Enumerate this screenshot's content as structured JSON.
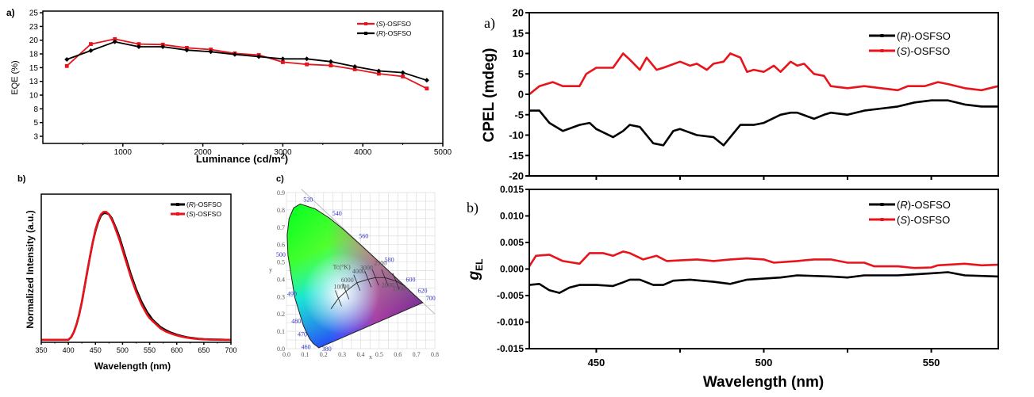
{
  "colors": {
    "S": "#e8131b",
    "R": "#000000"
  },
  "chart_data": [
    {
      "id": "eqe",
      "panel_label": "a)",
      "type": "line",
      "xlabel": "Luminance (cd/m",
      "xlabel_sup": "2",
      "xlabel_end": ")",
      "ylabel": "EQE (%)",
      "xlim": [
        0,
        5000
      ],
      "ylim": [
        1.2,
        25.3
      ],
      "xticks": [
        1000,
        2000,
        3000,
        4000,
        5000
      ],
      "xtick_labels": [
        "1000",
        "2000",
        "3000",
        "4000",
        "5000"
      ],
      "yticks": [
        2.5,
        5,
        7.5,
        10,
        12.5,
        15,
        17.5,
        20,
        22.5,
        25
      ],
      "ytick_labels": [
        "3",
        "5",
        "8",
        "10",
        "13",
        "15",
        "18",
        "20",
        "23",
        "25"
      ],
      "legend": "top-right",
      "x": [
        300,
        600,
        900,
        1200,
        1500,
        1800,
        2100,
        2400,
        2700,
        3000,
        3300,
        3600,
        3900,
        4200,
        4500,
        4800
      ],
      "series": [
        {
          "name_pre": "(",
          "name_it": "S",
          "name_post": ")-OSFSO",
          "color": "S",
          "marker": "square",
          "values": [
            15.3,
            19.3,
            20.2,
            19.3,
            19.2,
            18.6,
            18.3,
            17.6,
            17.3,
            16.0,
            15.6,
            15.4,
            14.7,
            13.9,
            13.4,
            11.2
          ]
        },
        {
          "name_pre": "(",
          "name_it": "R",
          "name_post": ")-OSFSO",
          "color": "R",
          "marker": "diamond",
          "values": [
            16.5,
            18.1,
            19.7,
            18.8,
            18.8,
            18.2,
            17.9,
            17.4,
            17.0,
            16.6,
            16.6,
            16.1,
            15.2,
            14.4,
            14.1,
            12.7
          ]
        }
      ]
    },
    {
      "id": "pl",
      "panel_label": "b)",
      "type": "line",
      "xlabel": "Wavelength (nm)",
      "ylabel": "Normalized Intensity (a.u.)",
      "xlim": [
        350,
        700
      ],
      "ylim": [
        -0.02,
        1.15
      ],
      "xticks": [
        350,
        400,
        450,
        500,
        550,
        600,
        650,
        700
      ],
      "xtick_labels": [
        "350",
        "400",
        "450",
        "500",
        "550",
        "600",
        "650",
        "700"
      ],
      "legend": "top-right",
      "x": [
        350,
        360,
        370,
        380,
        390,
        400,
        405,
        410,
        415,
        420,
        425,
        430,
        435,
        440,
        445,
        450,
        455,
        460,
        465,
        470,
        475,
        480,
        485,
        490,
        495,
        500,
        505,
        510,
        515,
        520,
        525,
        530,
        535,
        540,
        545,
        550,
        555,
        560,
        570,
        580,
        590,
        600,
        610,
        620,
        630,
        640,
        650,
        660,
        670,
        680,
        690,
        700
      ],
      "series": [
        {
          "name_pre": "(",
          "name_it": "R",
          "name_post": ")-OSFSO",
          "color": "R",
          "values": [
            0,
            0,
            0,
            0,
            0,
            0,
            0.02,
            0.06,
            0.12,
            0.2,
            0.3,
            0.42,
            0.54,
            0.66,
            0.77,
            0.86,
            0.93,
            0.98,
            1.0,
            1.0,
            0.99,
            0.96,
            0.91,
            0.86,
            0.8,
            0.73,
            0.66,
            0.59,
            0.52,
            0.46,
            0.4,
            0.35,
            0.3,
            0.26,
            0.22,
            0.19,
            0.16,
            0.14,
            0.1,
            0.075,
            0.055,
            0.04,
            0.028,
            0.019,
            0.013,
            0.008,
            0.005,
            0.003,
            0.002,
            0.001,
            0,
            0
          ]
        },
        {
          "name_pre": "(",
          "name_it": "S",
          "name_post": ")-OSFSO",
          "color": "S",
          "values": [
            0,
            0,
            0,
            0,
            0,
            0,
            0.02,
            0.06,
            0.12,
            0.2,
            0.3,
            0.42,
            0.54,
            0.66,
            0.77,
            0.87,
            0.94,
            0.99,
            1.01,
            1.01,
            0.99,
            0.95,
            0.9,
            0.84,
            0.78,
            0.71,
            0.64,
            0.57,
            0.5,
            0.44,
            0.38,
            0.33,
            0.28,
            0.24,
            0.2,
            0.17,
            0.15,
            0.13,
            0.09,
            0.065,
            0.048,
            0.035,
            0.024,
            0.016,
            0.01,
            0.006,
            0.004,
            0.002,
            0.001,
            0,
            0,
            0
          ]
        }
      ]
    },
    {
      "id": "cie",
      "panel_label": "c)",
      "type": "scatter",
      "xlabel": "x",
      "ylabel": "y",
      "xlim": [
        0,
        0.8
      ],
      "ylim": [
        0,
        0.9
      ],
      "xticks": [
        0,
        0.1,
        0.2,
        0.3,
        0.4,
        0.5,
        0.6,
        0.7,
        0.8
      ],
      "xtick_labels": [
        "0.0",
        "0.1",
        "0.2",
        "0.3",
        "0.4",
        "0.5",
        "0.6",
        "0.7",
        "0.8"
      ],
      "yticks": [
        0,
        0.1,
        0.2,
        0.3,
        0.4,
        0.5,
        0.6,
        0.7,
        0.8,
        0.9
      ],
      "ytick_labels": [
        "0.0",
        "0.1",
        "0.2",
        "0.3",
        "0.4",
        "0.5",
        "0.6",
        "0.7",
        "0.8",
        "0.9"
      ],
      "grid": true,
      "spectral_locus": [
        [
          0.1741,
          0.005
        ],
        [
          0.144,
          0.03
        ],
        [
          0.124,
          0.058
        ],
        [
          0.091,
          0.133
        ],
        [
          0.045,
          0.295
        ],
        [
          0.008,
          0.538
        ],
        [
          0.004,
          0.655
        ],
        [
          0.014,
          0.75
        ],
        [
          0.039,
          0.812
        ],
        [
          0.074,
          0.834
        ],
        [
          0.155,
          0.806
        ],
        [
          0.23,
          0.754
        ],
        [
          0.302,
          0.692
        ],
        [
          0.373,
          0.624
        ],
        [
          0.444,
          0.555
        ],
        [
          0.512,
          0.487
        ],
        [
          0.575,
          0.424
        ],
        [
          0.627,
          0.372
        ],
        [
          0.691,
          0.308
        ],
        [
          0.735,
          0.265
        ]
      ],
      "wavelength_labels": [
        {
          "text": "520",
          "x": 0.074,
          "y": 0.834
        },
        {
          "text": "540",
          "x": 0.23,
          "y": 0.754
        },
        {
          "text": "560",
          "x": 0.373,
          "y": 0.624
        },
        {
          "text": "580",
          "x": 0.512,
          "y": 0.487
        },
        {
          "text": "600",
          "x": 0.627,
          "y": 0.372
        },
        {
          "text": "620",
          "x": 0.691,
          "y": 0.308
        },
        {
          "text": "700",
          "x": 0.735,
          "y": 0.265
        },
        {
          "text": "500",
          "x": 0.008,
          "y": 0.538
        },
        {
          "text": "490",
          "x": 0.045,
          "y": 0.295
        },
        {
          "text": "480",
          "x": 0.091,
          "y": 0.133
        },
        {
          "text": "470",
          "x": 0.124,
          "y": 0.058
        },
        {
          "text": "460",
          "x": 0.144,
          "y": 0.03
        },
        {
          "text": "380",
          "x": 0.1741,
          "y": 0.005
        }
      ],
      "planckian_title": "Tc(°K)",
      "planckian_locus": [
        [
          0.24,
          0.23
        ],
        [
          0.28,
          0.29
        ],
        [
          0.32,
          0.33
        ],
        [
          0.38,
          0.38
        ],
        [
          0.44,
          0.4
        ],
        [
          0.48,
          0.41
        ],
        [
          0.53,
          0.41
        ],
        [
          0.59,
          0.39
        ],
        [
          0.64,
          0.36
        ]
      ],
      "cct_labels": [
        {
          "text": "10000",
          "x": 0.28,
          "y": 0.29
        },
        {
          "text": "6000",
          "x": 0.32,
          "y": 0.33
        },
        {
          "text": "4000",
          "x": 0.38,
          "y": 0.38
        },
        {
          "text": "3000",
          "x": 0.44,
          "y": 0.4
        },
        {
          "text": "2500",
          "x": 0.48,
          "y": 0.41
        },
        {
          "text": "2000",
          "x": 0.53,
          "y": 0.41
        },
        {
          "text": "1500",
          "x": 0.59,
          "y": 0.39
        }
      ]
    },
    {
      "id": "cpel",
      "panel_label": "a)",
      "type": "line",
      "xlabel": "",
      "ylabel": "CPEL (mdeg)",
      "xlim": [
        430,
        570
      ],
      "ylim": [
        -20,
        20
      ],
      "xticks": [
        450,
        475,
        500,
        525,
        550
      ],
      "yticks": [
        -20,
        -15,
        -10,
        -5,
        0,
        5,
        10,
        15,
        20
      ],
      "ytick_labels": [
        "-20",
        "-15",
        "-10",
        "-5",
        "0",
        "5",
        "10",
        "15",
        "20"
      ],
      "legend": "top-right",
      "series": [
        {
          "name_pre": "(",
          "name_it": "R",
          "name_post": ")-OSFSO",
          "color": "R",
          "x": [
            430,
            433,
            436,
            440,
            445,
            448,
            450,
            455,
            458,
            460,
            463,
            467,
            470,
            473,
            475,
            480,
            485,
            488,
            490,
            493,
            497,
            500,
            505,
            508,
            510,
            515,
            518,
            520,
            525,
            530,
            535,
            540,
            545,
            550,
            555,
            560,
            565,
            570
          ],
          "values": [
            -4,
            -4,
            -7,
            -9,
            -7.5,
            -7,
            -8.5,
            -10.5,
            -9,
            -7.5,
            -8,
            -12,
            -12.5,
            -9,
            -8.5,
            -10,
            -10.5,
            -12.5,
            -10.5,
            -7.5,
            -7.5,
            -7,
            -5,
            -4.5,
            -4.5,
            -6,
            -5,
            -4.5,
            -5,
            -4,
            -3.5,
            -3,
            -2,
            -1.5,
            -1.5,
            -2.5,
            -3,
            -3
          ]
        },
        {
          "name_pre": "(",
          "name_it": "S",
          "name_post": ")-OSFSO",
          "color": "S",
          "x": [
            430,
            433,
            437,
            440,
            445,
            447,
            450,
            455,
            458,
            460,
            463,
            465,
            468,
            470,
            475,
            478,
            480,
            483,
            485,
            488,
            490,
            493,
            495,
            497,
            500,
            503,
            505,
            508,
            510,
            512,
            515,
            518,
            520,
            525,
            530,
            535,
            540,
            543,
            548,
            552,
            555,
            560,
            565,
            570
          ],
          "values": [
            0,
            2,
            3,
            2,
            2,
            5,
            6.5,
            6.5,
            10,
            8.5,
            6,
            9,
            6,
            6.5,
            8,
            7,
            7.5,
            6,
            7.5,
            8,
            10,
            9,
            5.5,
            6,
            5.5,
            7,
            5.5,
            8,
            7,
            7.5,
            5,
            4.5,
            2,
            1.5,
            2,
            1.5,
            1,
            2,
            2,
            3,
            2.5,
            1.5,
            1,
            2
          ]
        }
      ]
    },
    {
      "id": "gel",
      "panel_label": "b)",
      "type": "line",
      "xlabel": "Wavelength (nm)",
      "ylabel": "g",
      "ylabel_sub": "EL",
      "xlim": [
        430,
        570
      ],
      "ylim": [
        -0.015,
        0.015
      ],
      "xticks": [
        450,
        475,
        500,
        525,
        550
      ],
      "xtick_labels": [
        "450",
        "",
        "500",
        "",
        "550"
      ],
      "yticks": [
        -0.015,
        -0.01,
        -0.005,
        0,
        0.005,
        0.01,
        0.015
      ],
      "ytick_labels": [
        "-0.015",
        "-0.010",
        "-0.005",
        "0.000",
        "0.005",
        "0.010",
        "0.015"
      ],
      "legend": "top-right",
      "series": [
        {
          "name_pre": "(",
          "name_it": "R",
          "name_post": ")-OSFSO",
          "color": "R",
          "x": [
            430,
            433,
            436,
            439,
            442,
            445,
            450,
            455,
            458,
            460,
            463,
            467,
            470,
            473,
            478,
            485,
            490,
            495,
            500,
            505,
            510,
            520,
            525,
            530,
            540,
            550,
            555,
            560,
            570
          ],
          "values": [
            -0.003,
            -0.0028,
            -0.004,
            -0.0045,
            -0.0035,
            -0.003,
            -0.003,
            -0.0032,
            -0.0025,
            -0.002,
            -0.002,
            -0.003,
            -0.003,
            -0.0022,
            -0.002,
            -0.0024,
            -0.0028,
            -0.002,
            -0.0018,
            -0.0016,
            -0.0012,
            -0.0014,
            -0.0016,
            -0.0012,
            -0.0012,
            -0.0008,
            -0.0006,
            -0.0012,
            -0.0014
          ]
        },
        {
          "name_pre": "(",
          "name_it": "S",
          "name_post": ")-OSFSO",
          "color": "S",
          "x": [
            430,
            432,
            436,
            440,
            445,
            448,
            452,
            455,
            458,
            460,
            464,
            468,
            471,
            480,
            485,
            490,
            495,
            500,
            503,
            510,
            515,
            520,
            525,
            530,
            533,
            540,
            545,
            550,
            552,
            560,
            565,
            570
          ],
          "values": [
            0.0005,
            0.0025,
            0.0027,
            0.0015,
            0.001,
            0.003,
            0.003,
            0.0025,
            0.0033,
            0.003,
            0.0018,
            0.0025,
            0.0015,
            0.0018,
            0.0015,
            0.0018,
            0.002,
            0.0018,
            0.0012,
            0.0015,
            0.0018,
            0.0018,
            0.0012,
            0.0012,
            0.0005,
            0.0005,
            0.0002,
            0.0003,
            0.0007,
            0.001,
            0.0007,
            0.0008
          ]
        }
      ]
    }
  ]
}
